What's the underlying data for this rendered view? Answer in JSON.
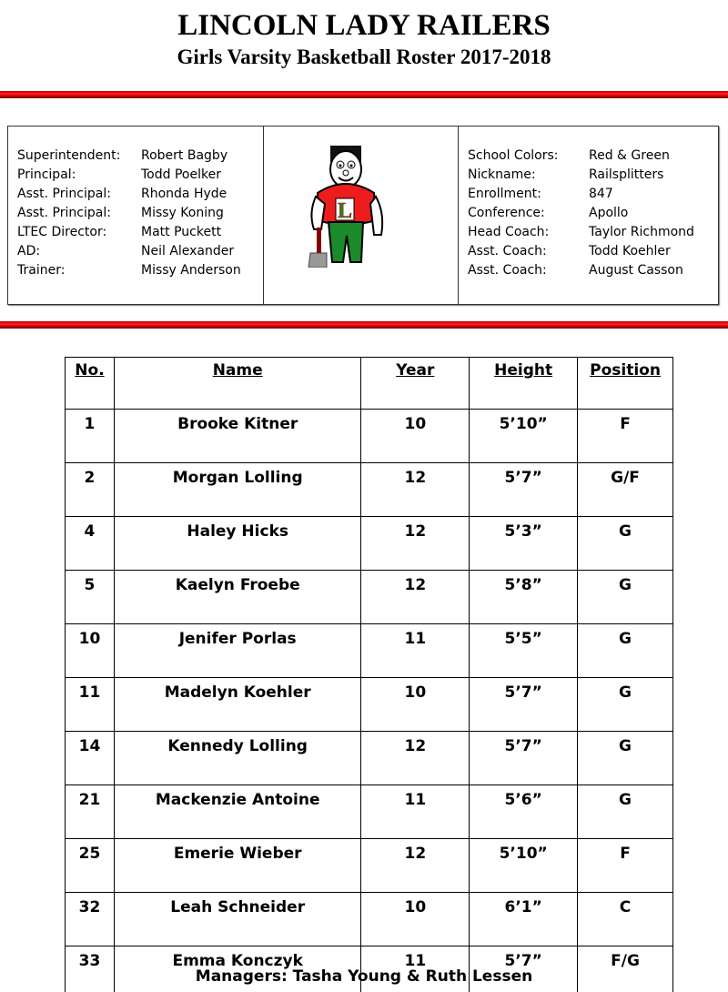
{
  "header": {
    "title": "LINCOLN LADY RAILERS",
    "subtitle": "Girls Varsity Basketball Roster 2017-2018"
  },
  "colors": {
    "accent_red": "#e00000",
    "mascot_green": "#1a8a2a"
  },
  "staff_left": [
    {
      "label": "Superintendent:",
      "value": "Robert Bagby"
    },
    {
      "label": "Principal:",
      "value": "Todd Poelker"
    },
    {
      "label": "Asst. Principal:",
      "value": "Rhonda Hyde"
    },
    {
      "label": "Asst. Principal:",
      "value": "Missy Koning"
    },
    {
      "label": "LTEC Director:",
      "value": "Matt Puckett"
    },
    {
      "label": "AD:",
      "value": "Neil Alexander"
    },
    {
      "label": "Trainer:",
      "value": "Missy Anderson"
    }
  ],
  "staff_right": [
    {
      "label": "School Colors:",
      "value": "Red & Green"
    },
    {
      "label": "Nickname:",
      "value": "Railsplitters"
    },
    {
      "label": "Enrollment:",
      "value": "847"
    },
    {
      "label": "Conference:",
      "value": "Apollo"
    },
    {
      "label": "Head Coach:",
      "value": "Taylor Richmond"
    },
    {
      "label": "Asst. Coach:",
      "value": "Todd Koehler"
    },
    {
      "label": "Asst. Coach:",
      "value": "August Casson"
    }
  ],
  "mascot": {
    "letter": "L"
  },
  "roster": {
    "headers": [
      "No.",
      "Name",
      "Year",
      "Height",
      "Position"
    ],
    "rows": [
      [
        "1",
        "Brooke Kitner",
        "10",
        "5’10”",
        "F"
      ],
      [
        "2",
        "Morgan Lolling",
        "12",
        "5’7”",
        "G/F"
      ],
      [
        "4",
        "Haley Hicks",
        "12",
        "5’3”",
        "G"
      ],
      [
        "5",
        "Kaelyn Froebe",
        "12",
        "5’8”",
        "G"
      ],
      [
        "10",
        "Jenifer Porlas",
        "11",
        "5’5”",
        "G"
      ],
      [
        "11",
        "Madelyn Koehler",
        "10",
        "5’7”",
        "G"
      ],
      [
        "14",
        "Kennedy Lolling",
        "12",
        "5’7”",
        "G"
      ],
      [
        "21",
        "Mackenzie Antoine",
        "11",
        "5’6”",
        "G"
      ],
      [
        "25",
        "Emerie Wieber",
        "12",
        "5’10”",
        "F"
      ],
      [
        "32",
        "Leah Schneider",
        "10",
        "6’1”",
        "C"
      ],
      [
        "33",
        "Emma Konczyk",
        "11",
        "5’7”",
        "F/G"
      ]
    ]
  },
  "footer": {
    "managers": "Managers:  Tasha Young & Ruth Lessen"
  }
}
